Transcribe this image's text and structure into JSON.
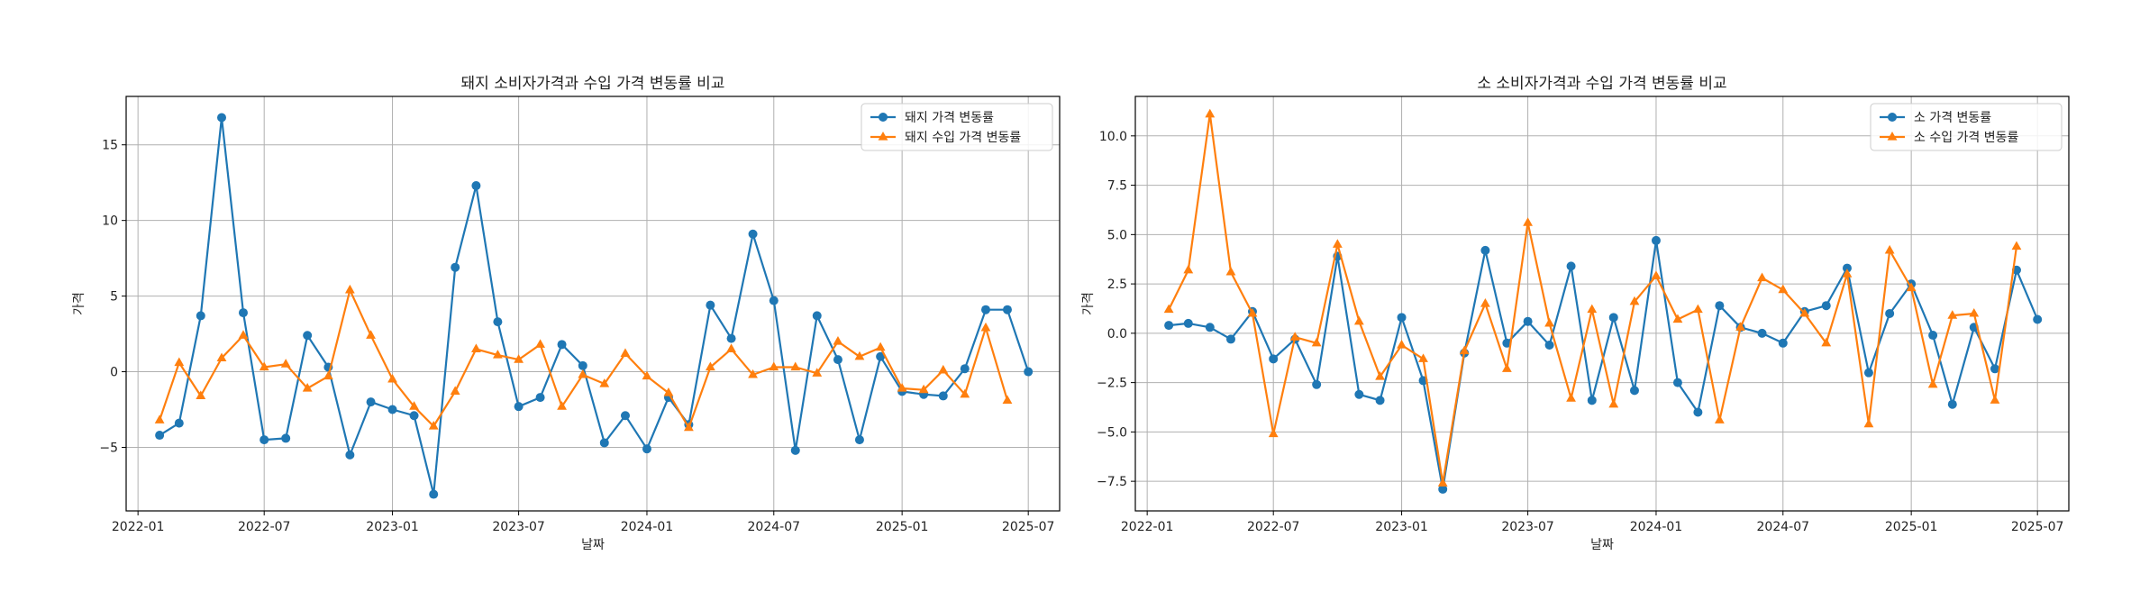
{
  "chart_data": [
    {
      "type": "line",
      "title": "돼지 소비자가격과 수입 가격 변동률 비교",
      "xlabel": "날짜",
      "ylabel": "가격",
      "x_range": [
        "2021-12-15",
        "2025-08-15"
      ],
      "ylim": [
        -9.2,
        18.2
      ],
      "xticks": [
        "2022-01",
        "2022-07",
        "2023-01",
        "2023-07",
        "2024-01",
        "2024-07",
        "2025-01",
        "2025-07"
      ],
      "yticks": [
        -5,
        0,
        5,
        10,
        15
      ],
      "grid": true,
      "legend_position": "top-right",
      "x": [
        "2022-02",
        "2022-03",
        "2022-04",
        "2022-05",
        "2022-06",
        "2022-07",
        "2022-08",
        "2022-09",
        "2022-10",
        "2022-11",
        "2022-12",
        "2023-01",
        "2023-02",
        "2023-03",
        "2023-04",
        "2023-05",
        "2023-06",
        "2023-07",
        "2023-08",
        "2023-09",
        "2023-10",
        "2023-11",
        "2023-12",
        "2024-01",
        "2024-02",
        "2024-03",
        "2024-04",
        "2024-05",
        "2024-06",
        "2024-07",
        "2024-08",
        "2024-09",
        "2024-10",
        "2024-11",
        "2024-12",
        "2025-01",
        "2025-02",
        "2025-03",
        "2025-04",
        "2025-05",
        "2025-06",
        "2025-07"
      ],
      "series": [
        {
          "name": "돼지 가격 변동률",
          "color": "#1f77b4",
          "marker": "circle",
          "values": [
            -4.2,
            -3.4,
            3.7,
            16.8,
            3.9,
            -4.5,
            -4.4,
            2.4,
            0.3,
            -5.5,
            -2.0,
            -2.5,
            -2.9,
            -8.1,
            6.9,
            12.3,
            3.3,
            -2.3,
            -1.7,
            1.8,
            0.4,
            -4.7,
            -2.9,
            -5.1,
            -1.7,
            -3.5,
            4.4,
            2.2,
            9.1,
            4.7,
            -5.2,
            3.7,
            0.8,
            -4.5,
            1.0,
            -1.3,
            -1.5,
            -1.6,
            0.2,
            4.1,
            4.1,
            0.0
          ]
        },
        {
          "name": "돼지 수입 가격 변동률",
          "color": "#ff7f0e",
          "marker": "triangle",
          "values": [
            -3.2,
            0.6,
            -1.6,
            0.9,
            2.4,
            0.3,
            0.5,
            -1.1,
            -0.3,
            5.4,
            2.4,
            -0.5,
            -2.3,
            -3.6,
            -1.3,
            1.5,
            1.1,
            0.8,
            1.8,
            -2.3,
            -0.2,
            -0.8,
            1.2,
            -0.3,
            -1.4,
            -3.7,
            0.3,
            1.5,
            -0.2,
            0.3,
            0.3,
            -0.1,
            2.0,
            1.0,
            1.6,
            -1.1,
            -1.2,
            0.1,
            -1.5,
            2.9,
            -1.9,
            null
          ]
        }
      ]
    },
    {
      "type": "line",
      "title": "소 소비자가격과 수입 가격 변동률 비교",
      "xlabel": "날짜",
      "ylabel": "가격",
      "x_range": [
        "2021-12-15",
        "2025-08-15"
      ],
      "ylim": [
        -9.0,
        12.0
      ],
      "xticks": [
        "2022-01",
        "2022-07",
        "2023-01",
        "2023-07",
        "2024-01",
        "2024-07",
        "2025-01",
        "2025-07"
      ],
      "yticks": [
        -7.5,
        -5.0,
        -2.5,
        0.0,
        2.5,
        5.0,
        7.5,
        10.0
      ],
      "grid": true,
      "legend_position": "top-right",
      "x": [
        "2022-02",
        "2022-03",
        "2022-04",
        "2022-05",
        "2022-06",
        "2022-07",
        "2022-08",
        "2022-09",
        "2022-10",
        "2022-11",
        "2022-12",
        "2023-01",
        "2023-02",
        "2023-03",
        "2023-04",
        "2023-05",
        "2023-06",
        "2023-07",
        "2023-08",
        "2023-09",
        "2023-10",
        "2023-11",
        "2023-12",
        "2024-01",
        "2024-02",
        "2024-03",
        "2024-04",
        "2024-05",
        "2024-06",
        "2024-07",
        "2024-08",
        "2024-09",
        "2024-10",
        "2024-11",
        "2024-12",
        "2025-01",
        "2025-02",
        "2025-03",
        "2025-04",
        "2025-05",
        "2025-06",
        "2025-07"
      ],
      "series": [
        {
          "name": "소 가격 변동률",
          "color": "#1f77b4",
          "marker": "circle",
          "values": [
            0.4,
            0.5,
            0.3,
            -0.3,
            1.1,
            -1.3,
            -0.3,
            -2.6,
            3.9,
            -3.1,
            -3.4,
            0.8,
            -2.4,
            -7.9,
            -1.0,
            4.2,
            -0.5,
            0.6,
            -0.6,
            3.4,
            -3.4,
            0.8,
            -2.9,
            4.7,
            -2.5,
            -4.0,
            1.4,
            0.3,
            0.0,
            -0.5,
            1.1,
            1.4,
            3.3,
            -2.0,
            1.0,
            2.5,
            -0.1,
            -3.6,
            0.3,
            -1.8,
            3.2,
            0.7
          ]
        },
        {
          "name": "소 수입 가격 변동률",
          "color": "#ff7f0e",
          "marker": "triangle",
          "values": [
            1.2,
            3.2,
            11.1,
            3.1,
            1.0,
            -5.1,
            -0.2,
            -0.5,
            4.5,
            0.6,
            -2.2,
            -0.6,
            -1.3,
            -7.6,
            -0.9,
            1.5,
            -1.8,
            5.6,
            0.5,
            -3.3,
            1.2,
            -3.6,
            1.6,
            2.9,
            0.7,
            1.2,
            -4.4,
            0.3,
            2.8,
            2.2,
            1.0,
            -0.5,
            3.0,
            -4.6,
            4.2,
            2.3,
            -2.6,
            0.9,
            1.0,
            -3.4,
            4.4,
            null
          ]
        }
      ]
    }
  ]
}
